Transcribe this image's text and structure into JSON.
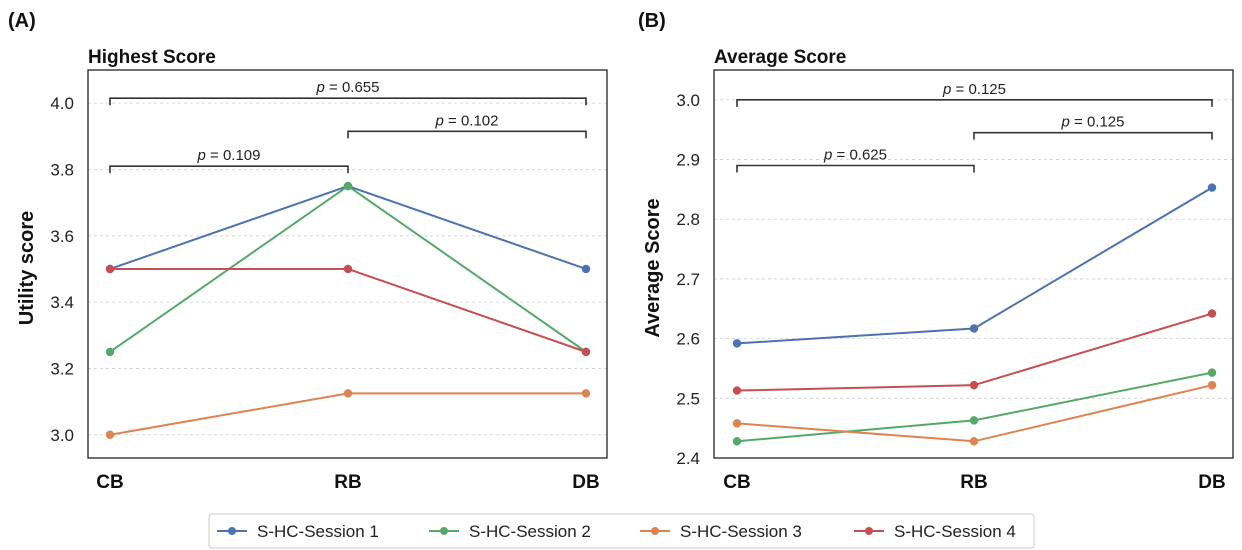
{
  "colors": {
    "S-HC-Session 1": "#4c72b0",
    "S-HC-Session 2": "#55a868",
    "S-HC-Session 3": "#dd8452",
    "S-HC-Session 4": "#c44e52"
  },
  "chart_data": [
    {
      "panel_label": "(A)",
      "type": "line",
      "title": "Highest Score",
      "xlabel": "",
      "ylabel": "Utility score",
      "categories": [
        "CB",
        "RB",
        "DB"
      ],
      "ylim": [
        2.93,
        4.1
      ],
      "yticks": [
        3.0,
        3.2,
        3.4,
        3.6,
        3.8,
        4.0
      ],
      "ytick_labels": [
        "3.0",
        "3.2",
        "3.4",
        "3.6",
        "3.8",
        "4.0"
      ],
      "grid": true,
      "series": [
        {
          "name": "S-HC-Session 1",
          "values": [
            3.5,
            3.75,
            3.5
          ]
        },
        {
          "name": "S-HC-Session 2",
          "values": [
            3.25,
            3.75,
            3.25
          ]
        },
        {
          "name": "S-HC-Session 3",
          "values": [
            3.0,
            3.125,
            3.125
          ]
        },
        {
          "name": "S-HC-Session 4",
          "values": [
            3.5,
            3.5,
            3.25
          ]
        }
      ],
      "annotations": [
        {
          "from": "CB",
          "to": "RB",
          "y": 3.81,
          "label": "p = 0.109"
        },
        {
          "from": "RB",
          "to": "DB",
          "y": 3.915,
          "label": "p = 0.102"
        },
        {
          "from": "CB",
          "to": "DB",
          "y": 4.015,
          "label": "p = 0.655"
        }
      ]
    },
    {
      "panel_label": "(B)",
      "type": "line",
      "title": "Average Score",
      "xlabel": "",
      "ylabel": "Average Score",
      "categories": [
        "CB",
        "RB",
        "DB"
      ],
      "ylim": [
        2.4,
        3.05
      ],
      "yticks": [
        2.4,
        2.5,
        2.6,
        2.7,
        2.8,
        2.9,
        3.0
      ],
      "ytick_labels": [
        "2.4",
        "2.5",
        "2.6",
        "2.7",
        "2.8",
        "2.9",
        "3.0"
      ],
      "grid": true,
      "series": [
        {
          "name": "S-HC-Session 1",
          "values": [
            2.592,
            2.617,
            2.853
          ]
        },
        {
          "name": "S-HC-Session 2",
          "values": [
            2.428,
            2.463,
            2.543
          ]
        },
        {
          "name": "S-HC-Session 3",
          "values": [
            2.458,
            2.428,
            2.522
          ]
        },
        {
          "name": "S-HC-Session 4",
          "values": [
            2.513,
            2.522,
            2.642
          ]
        }
      ],
      "annotations": [
        {
          "from": "CB",
          "to": "RB",
          "y": 2.89,
          "label": "p = 0.625"
        },
        {
          "from": "RB",
          "to": "DB",
          "y": 2.945,
          "label": "p = 0.125"
        },
        {
          "from": "CB",
          "to": "DB",
          "y": 3.0,
          "label": "p = 0.125"
        }
      ]
    }
  ],
  "legend": {
    "placement": "bottom-center",
    "entries": [
      "S-HC-Session 1",
      "S-HC-Session 2",
      "S-HC-Session 3",
      "S-HC-Session 4"
    ]
  }
}
